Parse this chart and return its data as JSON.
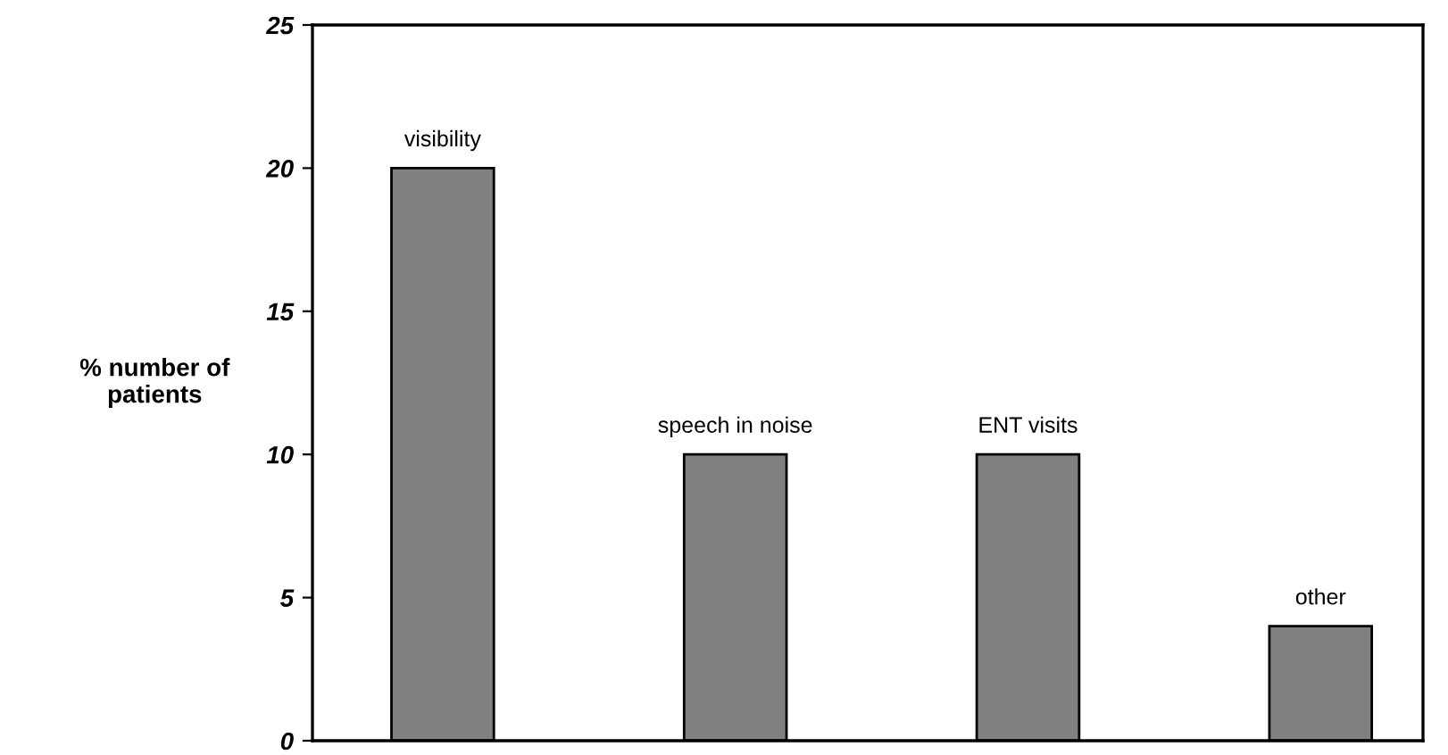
{
  "chart_data": {
    "type": "bar",
    "ylabel": "% number of\npatients",
    "categories": [
      "visibility",
      "speech in noise",
      "ENT visits",
      "other"
    ],
    "values": [
      20,
      10,
      10,
      4
    ],
    "color": "#808080",
    "ylim": [
      0,
      25
    ],
    "yticks": [
      0,
      5,
      10,
      15,
      20,
      25
    ],
    "grid": false,
    "tick_labels": "y"
  }
}
